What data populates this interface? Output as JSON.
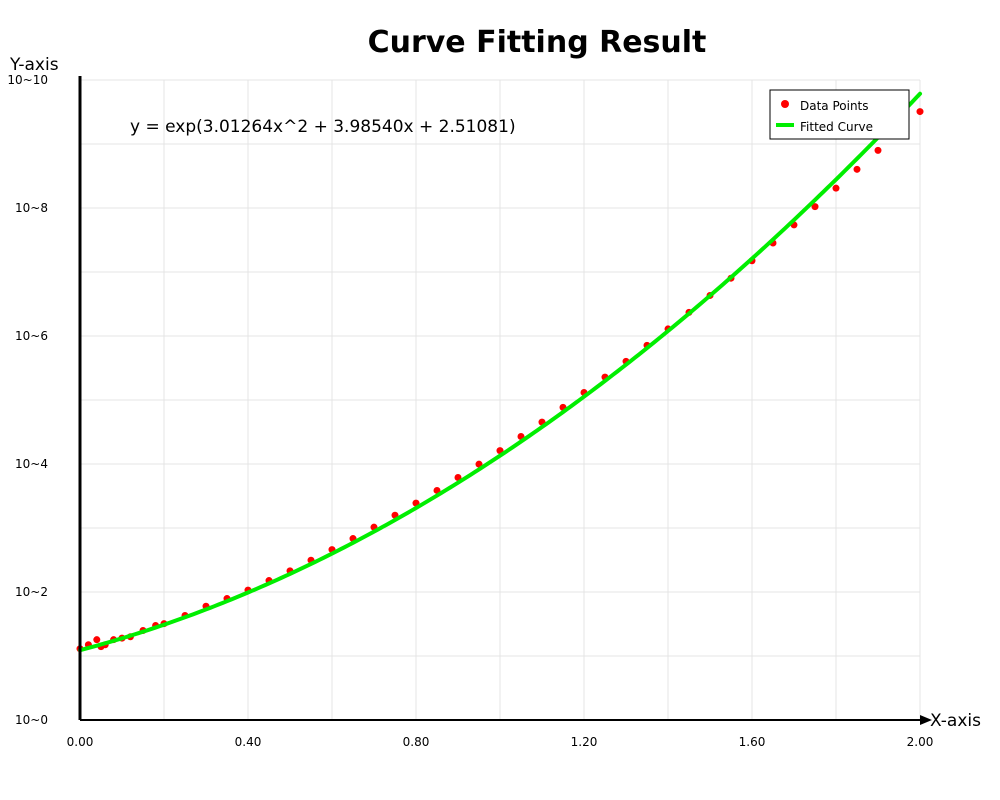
{
  "chart_data": {
    "type": "scatter",
    "title": "Curve Fitting Result",
    "xlabel": "X-axis",
    "ylabel": "Y-axis",
    "xlim": [
      0,
      2
    ],
    "ylim_log10": [
      0,
      10
    ],
    "y_scale": "log",
    "grid": true,
    "legend_position": "top-right",
    "x_ticks": [
      "0.00",
      "0.40",
      "0.80",
      "1.20",
      "1.60",
      "2.00"
    ],
    "y_ticks": [
      "10^0",
      "10^2",
      "10^4",
      "10^6",
      "10^8",
      "10^10"
    ],
    "annotation": "y = exp(3.01264x^2 + 3.98540x + 2.51081)",
    "fit_coefficients": {
      "a": 3.01264,
      "b": 3.9854,
      "c": 2.51081
    },
    "series": [
      {
        "name": "Data Points",
        "kind": "points",
        "color": "#ff0000",
        "x": [
          0.0,
          0.02,
          0.04,
          0.05,
          0.06,
          0.08,
          0.1,
          0.12,
          0.15,
          0.18,
          0.2,
          0.25,
          0.3,
          0.35,
          0.4,
          0.45,
          0.5,
          0.55,
          0.6,
          0.65,
          0.7,
          0.75,
          0.8,
          0.85,
          0.9,
          0.95,
          1.0,
          1.05,
          1.1,
          1.15,
          1.2,
          1.25,
          1.3,
          1.35,
          1.4,
          1.45,
          1.5,
          1.55,
          1.6,
          1.65,
          1.7,
          1.75,
          1.8,
          1.85,
          1.9,
          1.95,
          2.0
        ],
        "y": [
          13,
          15,
          18,
          14,
          15,
          18,
          19,
          20,
          25,
          30,
          32,
          43,
          60,
          79,
          107,
          151,
          214,
          314,
          460,
          684,
          1030,
          1580,
          2450,
          3860,
          6150,
          9940,
          16200,
          26900,
          45100,
          76600,
          131000,
          228000,
          401000,
          714000,
          1290000,
          2340000,
          4300000,
          8000000,
          15000000,
          28400000,
          54400000,
          105000000,
          204000000,
          402000000,
          795000000,
          1590000000,
          3210000000
        ]
      },
      {
        "name": "Fitted Curve",
        "kind": "line",
        "color": "#00ee00"
      }
    ]
  }
}
